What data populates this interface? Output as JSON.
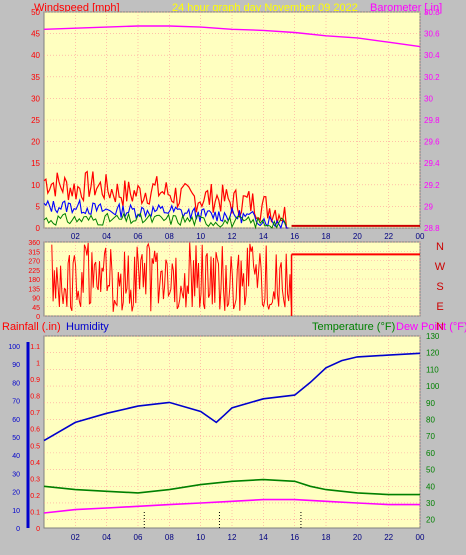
{
  "header": {
    "left_label": "Windspeed [mph]",
    "center_label": "24 hour graph day   November 09 2022",
    "right_label": "Barometer [.in]"
  },
  "bottom_header": {
    "rainfall_label": "Rainfall (.in)",
    "humidity_label": "Humidity",
    "temperature_label": "Temperature (°F)",
    "dewpoint_label": "Dew Point (°F)"
  },
  "colors": {
    "background": "#c0c0c0",
    "plot_bg": "#ffffc0",
    "grid": "#ff9a9a",
    "axis_red": "#ff0000",
    "wind_avg": "#0000ff",
    "wind_calm": "#008000",
    "barometer": "#ff00ff",
    "humidity": "#0000cc",
    "temperature": "#008000",
    "dew_point": "#ff00ff",
    "title_yellow": "#ffff00",
    "temp_label": "#008000"
  },
  "chart_data": [
    {
      "type": "line",
      "name": "wind_barometer",
      "x_ticks": [
        "02",
        "04",
        "06",
        "08",
        "10",
        "12",
        "14",
        "16",
        "18",
        "20",
        "22",
        "00"
      ],
      "y_left_ticks": [
        "0",
        "5",
        "10",
        "15",
        "20",
        "25",
        "30",
        "35",
        "40",
        "45",
        "50"
      ],
      "y_right_ticks": [
        "28.8",
        "29",
        "29.2",
        "29.4",
        "29.6",
        "29.8",
        "30",
        "30.2",
        "30.4",
        "30.6",
        "30.8"
      ],
      "ylim_left": [
        0,
        50
      ],
      "ylim_right": [
        28.8,
        30.8
      ],
      "xlim": [
        0,
        24
      ],
      "wind_gust": [
        [
          0,
          11
        ],
        [
          1,
          10
        ],
        [
          2,
          9
        ],
        [
          3,
          10
        ],
        [
          4,
          9
        ],
        [
          5,
          8
        ],
        [
          6,
          8
        ],
        [
          7,
          9
        ],
        [
          8,
          8
        ],
        [
          9,
          7
        ],
        [
          10,
          7
        ],
        [
          11,
          7
        ],
        [
          12,
          6
        ],
        [
          13,
          6
        ],
        [
          14,
          5
        ],
        [
          15,
          4
        ],
        [
          15.6,
          2
        ],
        [
          15.8,
          0
        ],
        [
          24,
          0
        ]
      ],
      "wind_avg": [
        [
          0,
          5
        ],
        [
          2,
          5
        ],
        [
          4,
          4
        ],
        [
          6,
          4
        ],
        [
          8,
          4
        ],
        [
          10,
          3
        ],
        [
          12,
          3
        ],
        [
          14,
          2
        ],
        [
          15.6,
          1
        ],
        [
          15.8,
          0
        ],
        [
          24,
          0
        ]
      ],
      "barometer": [
        [
          0,
          30.64
        ],
        [
          2,
          30.65
        ],
        [
          4,
          30.66
        ],
        [
          6,
          30.67
        ],
        [
          8,
          30.67
        ],
        [
          10,
          30.66
        ],
        [
          12,
          30.64
        ],
        [
          14,
          30.63
        ],
        [
          16,
          30.61
        ],
        [
          18,
          30.58
        ],
        [
          20,
          30.56
        ],
        [
          22,
          30.52
        ],
        [
          24,
          30.48
        ]
      ]
    },
    {
      "type": "line",
      "name": "wind_direction",
      "right_labels": [
        "N",
        "W",
        "S",
        "E",
        "N"
      ],
      "y_ticks": [
        "0",
        "45",
        "90",
        "135",
        "180",
        "225",
        "270",
        "315",
        "360"
      ],
      "ylim": [
        0,
        360
      ],
      "xlim": [
        0,
        24
      ],
      "direction": [
        [
          0,
          200
        ],
        [
          2,
          80
        ],
        [
          4,
          250
        ],
        [
          6,
          180
        ],
        [
          8,
          120
        ],
        [
          10,
          150
        ],
        [
          11,
          230
        ],
        [
          12,
          290
        ],
        [
          13,
          200
        ],
        [
          14,
          260
        ],
        [
          15,
          150
        ],
        [
          15.8,
          30
        ],
        [
          16,
          300
        ],
        [
          24,
          300
        ]
      ]
    },
    {
      "type": "line",
      "name": "temp_humidity",
      "x_ticks": [
        "02",
        "04",
        "06",
        "08",
        "10",
        "12",
        "14",
        "16",
        "18",
        "20",
        "22",
        "00"
      ],
      "y_humidity_ticks": [
        "0",
        "10",
        "20",
        "30",
        "40",
        "50",
        "60",
        "70",
        "80",
        "90",
        "100"
      ],
      "y_rain_ticks": [
        "0",
        "0.1",
        "0.2",
        "0.3",
        "0.4",
        "0.5",
        "0.6",
        "0.7",
        "0.8",
        "0.9",
        "1",
        "1.1"
      ],
      "y_temp_ticks": [
        "20",
        "30",
        "40",
        "50",
        "60",
        "70",
        "80",
        "90",
        "100",
        "110",
        "120",
        "130"
      ],
      "xlim": [
        0,
        24
      ],
      "ylim_temp": [
        15,
        130
      ],
      "humidity": [
        [
          0,
          48
        ],
        [
          2,
          58
        ],
        [
          4,
          63
        ],
        [
          6,
          67
        ],
        [
          8,
          69
        ],
        [
          10,
          64
        ],
        [
          11,
          58
        ],
        [
          11.5,
          62
        ],
        [
          12,
          66
        ],
        [
          14,
          71
        ],
        [
          16,
          73
        ],
        [
          17,
          80
        ],
        [
          18,
          88
        ],
        [
          19,
          92
        ],
        [
          20,
          94
        ],
        [
          22,
          95
        ],
        [
          24,
          96
        ]
      ],
      "temperature": [
        [
          0,
          40
        ],
        [
          2,
          38
        ],
        [
          4,
          37
        ],
        [
          6,
          36
        ],
        [
          8,
          38
        ],
        [
          10,
          41
        ],
        [
          12,
          43
        ],
        [
          14,
          44
        ],
        [
          16,
          43
        ],
        [
          17,
          40
        ],
        [
          18,
          38
        ],
        [
          20,
          36
        ],
        [
          22,
          35
        ],
        [
          24,
          35
        ]
      ],
      "dew_point": [
        [
          0,
          24
        ],
        [
          2,
          26
        ],
        [
          4,
          27
        ],
        [
          6,
          28
        ],
        [
          8,
          29
        ],
        [
          10,
          30
        ],
        [
          12,
          31
        ],
        [
          14,
          32
        ],
        [
          16,
          32
        ],
        [
          18,
          31
        ],
        [
          20,
          30
        ],
        [
          22,
          29
        ],
        [
          24,
          29
        ]
      ]
    }
  ]
}
